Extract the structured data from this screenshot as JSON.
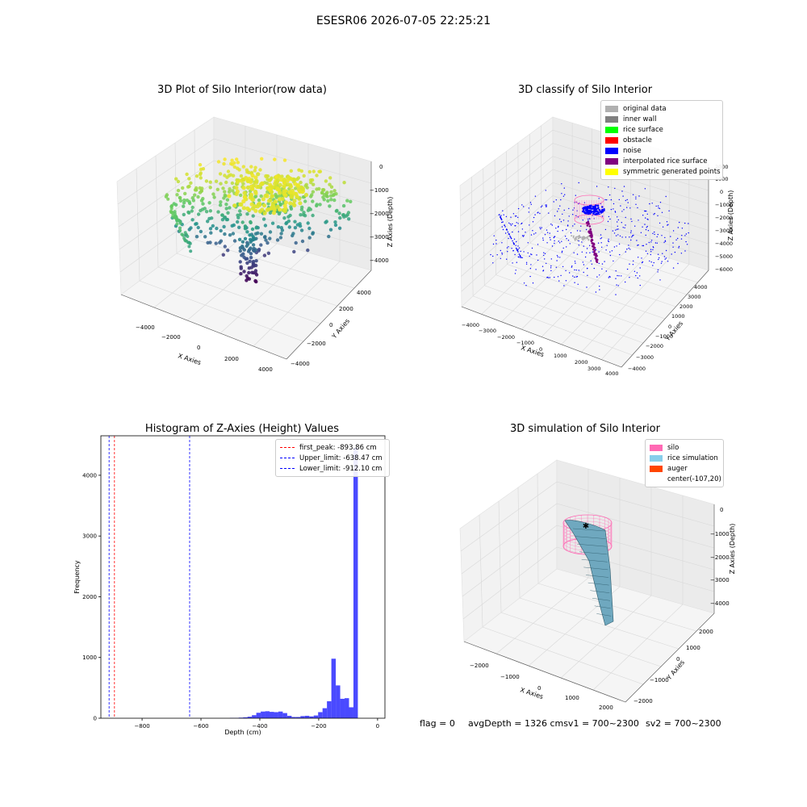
{
  "suptitle": "ESESR06 2026-07-05 22:25:21",
  "chart_data": [
    {
      "type": "scatter",
      "panel": "3d-raw",
      "title": "3D Plot of Silo Interior(row data)",
      "xlabel": "X Axies",
      "ylabel": "Y Axies",
      "zlabel": "Z Axies (Depth)",
      "x_ticks": [
        "−4000",
        "−2000",
        "0",
        "2000",
        "4000"
      ],
      "y_ticks": [
        "−4000",
        "−2000",
        "0",
        "2000",
        "4000"
      ],
      "z_ticks": [
        "0",
        "−1000",
        "−2000",
        "−3000",
        "−4000"
      ],
      "colormap": "viridis"
    },
    {
      "type": "scatter",
      "panel": "3d-classify",
      "title": "3D classify of Silo Interior",
      "xlabel": "X Axies",
      "ylabel": "Y Axies",
      "zlabel": "Z Axies (Depth)",
      "x_ticks": [
        "−4000",
        "−3000",
        "−2000",
        "−1000",
        "0",
        "1000",
        "2000",
        "3000",
        "4000"
      ],
      "y_ticks": [
        "−4000",
        "−3000",
        "−2000",
        "−1000",
        "0",
        "1000",
        "2000",
        "3000",
        "4000"
      ],
      "z_ticks": [
        "2000",
        "1000",
        "0",
        "−1000",
        "−2000",
        "−3000",
        "−4000",
        "−5000",
        "−6000"
      ],
      "legend": [
        {
          "label": "original data",
          "color": "#b0b0b0"
        },
        {
          "label": "inner wall",
          "color": "#808080"
        },
        {
          "label": "rice surface",
          "color": "#00ff00"
        },
        {
          "label": "obstacle",
          "color": "#ff0000"
        },
        {
          "label": "noise",
          "color": "#0000ff"
        },
        {
          "label": "interpolated rice surface",
          "color": "#800080"
        },
        {
          "label": "symmetric generated points",
          "color": "#ffff00"
        }
      ],
      "legend_position": "upper right"
    },
    {
      "type": "bar",
      "panel": "histogram",
      "title": "Histogram of Z-Axies (Height) Values",
      "xlabel": "Depth (cm)",
      "ylabel": "Frequency",
      "xlim": [
        -940,
        25
      ],
      "ylim": [
        0,
        4650
      ],
      "x_ticks": [
        -800,
        -600,
        -400,
        -200,
        0
      ],
      "x_tick_labels": [
        "−800",
        "−600",
        "−400",
        "−200",
        "0"
      ],
      "y_ticks": [
        0,
        1000,
        2000,
        3000,
        4000
      ],
      "bin_width": 15,
      "bins": [
        {
          "x": -502,
          "y": 5
        },
        {
          "x": -487,
          "y": 5
        },
        {
          "x": -472,
          "y": 10
        },
        {
          "x": -457,
          "y": 15
        },
        {
          "x": -442,
          "y": 25
        },
        {
          "x": -427,
          "y": 50
        },
        {
          "x": -412,
          "y": 90
        },
        {
          "x": -397,
          "y": 110
        },
        {
          "x": -382,
          "y": 115
        },
        {
          "x": -367,
          "y": 105
        },
        {
          "x": -352,
          "y": 100
        },
        {
          "x": -337,
          "y": 110
        },
        {
          "x": -322,
          "y": 85
        },
        {
          "x": -307,
          "y": 40
        },
        {
          "x": -292,
          "y": 20
        },
        {
          "x": -277,
          "y": 20
        },
        {
          "x": -262,
          "y": 35
        },
        {
          "x": -247,
          "y": 40
        },
        {
          "x": -232,
          "y": 30
        },
        {
          "x": -217,
          "y": 45
        },
        {
          "x": -202,
          "y": 100
        },
        {
          "x": -187,
          "y": 165
        },
        {
          "x": -172,
          "y": 280
        },
        {
          "x": -157,
          "y": 980
        },
        {
          "x": -142,
          "y": 540
        },
        {
          "x": -127,
          "y": 320
        },
        {
          "x": -112,
          "y": 330
        },
        {
          "x": -97,
          "y": 180
        },
        {
          "x": -82,
          "y": 4450
        }
      ],
      "vlines": [
        {
          "label": "first_peak: -893.86 cm",
          "x": -893.86,
          "color": "#ff0000"
        },
        {
          "label": "Upper_limit: -638.47 cm",
          "x": -638.47,
          "color": "#0000ff"
        },
        {
          "label": "Lower_limit: -912.10 cm",
          "x": -912.1,
          "color": "#0000ff"
        }
      ],
      "bar_color": "#4a4aff",
      "legend_position": "upper right"
    },
    {
      "type": "surface",
      "panel": "3d-simulation",
      "title": "3D simulation of Silo Interior",
      "xlabel": "X Axies",
      "ylabel": "Y Axies",
      "zlabel": "Z Axies (Depth)",
      "x_ticks": [
        "−2000",
        "−1000",
        "0",
        "1000",
        "2000"
      ],
      "y_ticks": [
        "−2000",
        "−1000",
        "0",
        "1000",
        "2000"
      ],
      "z_ticks": [
        "0",
        "−1000",
        "−2000",
        "−3000",
        "−4000"
      ],
      "legend": [
        {
          "label": "silo",
          "color": "#ff69b4"
        },
        {
          "label": "rice simulation",
          "color": "#87ceeb"
        },
        {
          "label": "auger",
          "color": "#ff4500"
        },
        {
          "label": "center(-107,20)",
          "color": ""
        }
      ],
      "legend_position": "upper right"
    }
  ],
  "footer": {
    "flag": "flag = 0",
    "avg": "avgDepth = 1326 cmsv1 = 700~2300",
    "sv2": "sv2 = 700~2300"
  }
}
